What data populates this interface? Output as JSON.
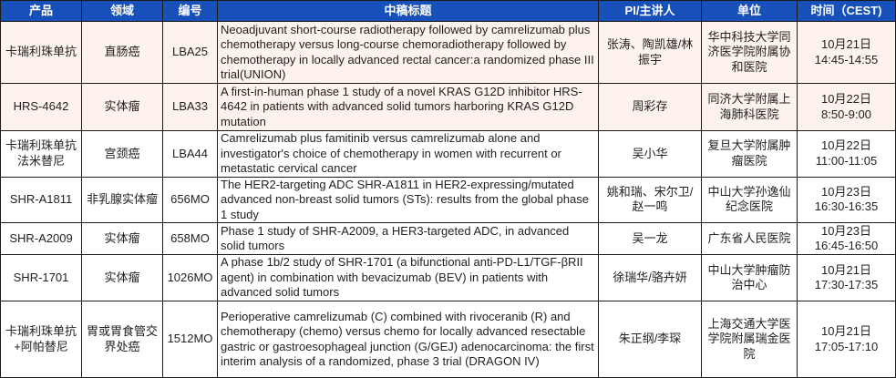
{
  "header": {
    "columns": [
      "产品",
      "领域",
      "编号",
      "中稿标题",
      "PI/主讲人",
      "单位",
      "时间（CEST)"
    ],
    "color": "#1650b8"
  },
  "highlight_color": "#fdf2ec",
  "rows": [
    {
      "product": "卡瑞利珠单抗",
      "area": "直肠癌",
      "code": "LBA25",
      "title": "Neoadjuvant short-course radiotherapy followed by camrelizumab plus chemotherapy versus long-course chemoradiotherapy followed by chemotherapy in locally advanced rectal cancer:a randomized phase III trial(UNION)",
      "pi": "张涛、陶凯雄/林振宇",
      "unit": "华中科技大学同济医学院附属协和医院",
      "date": "10月21日",
      "time": "14:45-14:55",
      "highlighted": true
    },
    {
      "product": "HRS-4642",
      "area": "实体瘤",
      "code": "LBA33",
      "title": " A first-in-human phase 1 study of a novel KRAS G12D inhibitor HRS-4642 in patients with advanced solid tumors harboring KRAS G12D mutation",
      "pi": "周彩存",
      "unit": "同济大学附属上海肺科医院",
      "date": "10月22日",
      "time": "8:50-9:00",
      "highlighted": true
    },
    {
      "product": "卡瑞利珠单抗法米替尼",
      "area": "宫颈癌",
      "code": "LBA44",
      "title": "Camrelizumab plus famitinib versus camrelizumab alone and investigator's choice of chemotherapy in women with recurrent or metastatic cervical cancer",
      "pi": "吴小华",
      "unit": "复旦大学附属肿瘤医院",
      "date": "10月22日",
      "time": "11:00-11:05",
      "highlighted": false
    },
    {
      "product": "SHR-A1811",
      "area": "非乳腺实体瘤",
      "code": "656MO",
      "title": "The HER2-targeting ADC SHR-A1811 in HER2-expressing/mutated advanced non-breast solid tumors (STs): results from the global phase 1 study",
      "pi": "姚和瑞、宋尔卫/赵一鸣",
      "unit": "中山大学孙逸仙纪念医院",
      "date": "10月23日",
      "time": "16:30-16:35",
      "highlighted": false
    },
    {
      "product": "SHR-A2009",
      "area": "实体瘤",
      "code": "658MO",
      "title": "Phase 1 study of SHR-A2009, a HER3-targeted ADC, in advanced solid tumors",
      "pi": "吴一龙",
      "unit": "广东省人民医院",
      "date": "10月23日",
      "time": "16:45-16:50",
      "highlighted": false
    },
    {
      "product": "SHR-1701",
      "area": "实体瘤",
      "code": "1026MO",
      "title": "A phase 1b/2 study of SHR-1701 (a bifunctional anti-PD-L1/TGF-βRII agent) in combination with bevacizumab (BEV) in patients with advanced solid tumors",
      "pi": "徐瑞华/骆卉妍",
      "unit": "中山大学肿瘤防治中心",
      "date": "10月21日",
      "time": "17:30-17:35",
      "highlighted": false
    },
    {
      "product": "卡瑞利珠单抗+阿帕替尼",
      "area": "胃或胃食管交界处癌",
      "code": "1512MO",
      "title": "Perioperative camrelizumab (C) combined with rivoceranib (R) and chemotherapy (chemo) versus chemo for locally advanced resectable gastric or gastroesophageal junction (G/GEJ) adenocarcinoma: the first interim analysis of a randomized, phase 3 trial (DRAGON IV)",
      "pi": "朱正纲/李琛",
      "unit": "上海交通大学医学院附属瑞金医院",
      "date": "10月21日",
      "time": "17:05-17:10",
      "highlighted": false
    }
  ]
}
